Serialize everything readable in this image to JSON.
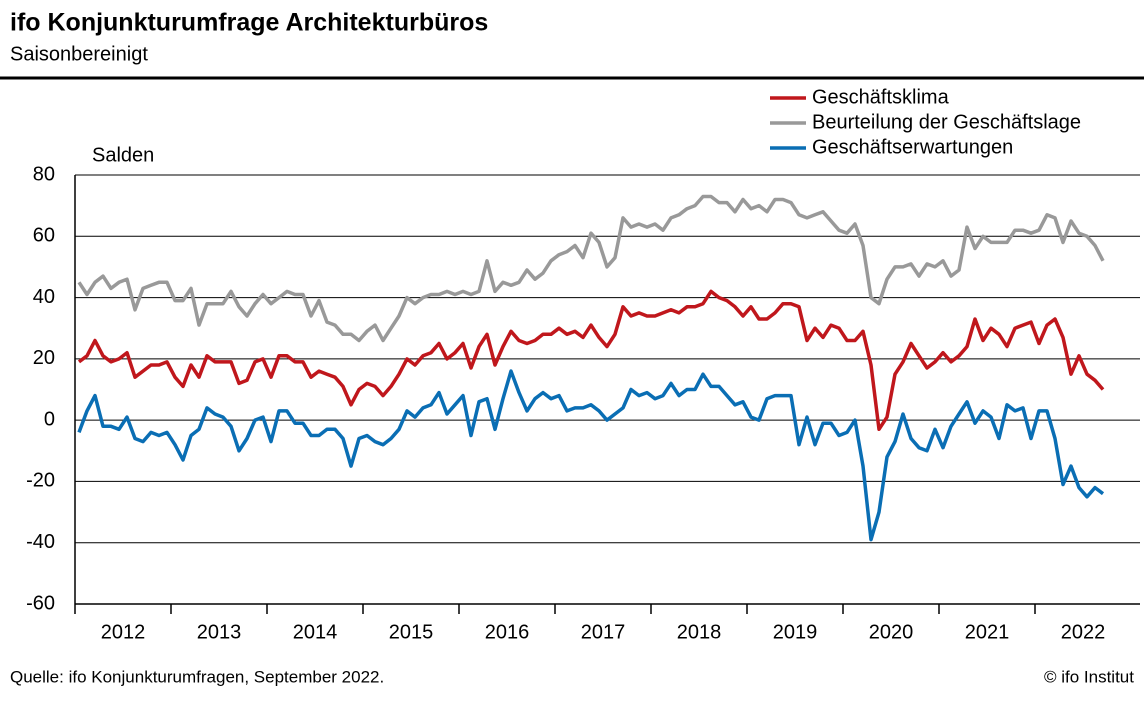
{
  "chart_data": {
    "type": "line",
    "title": "ifo Konjunkturumfrage Architekturbüros",
    "subtitle": "Saisonbereinigt",
    "y_label": "Salden",
    "source": "Quelle: ifo Konjunkturumfragen, September 2022.",
    "copyright": "© ifo Institut",
    "x": [
      "2012-01",
      "2012-02",
      "2012-03",
      "2012-04",
      "2012-05",
      "2012-06",
      "2012-07",
      "2012-08",
      "2012-09",
      "2012-10",
      "2012-11",
      "2012-12",
      "2013-01",
      "2013-02",
      "2013-03",
      "2013-04",
      "2013-05",
      "2013-06",
      "2013-07",
      "2013-08",
      "2013-09",
      "2013-10",
      "2013-11",
      "2013-12",
      "2014-01",
      "2014-02",
      "2014-03",
      "2014-04",
      "2014-05",
      "2014-06",
      "2014-07",
      "2014-08",
      "2014-09",
      "2014-10",
      "2014-11",
      "2014-12",
      "2015-01",
      "2015-02",
      "2015-03",
      "2015-04",
      "2015-05",
      "2015-06",
      "2015-07",
      "2015-08",
      "2015-09",
      "2015-10",
      "2015-11",
      "2015-12",
      "2016-01",
      "2016-02",
      "2016-03",
      "2016-04",
      "2016-05",
      "2016-06",
      "2016-07",
      "2016-08",
      "2016-09",
      "2016-10",
      "2016-11",
      "2016-12",
      "2017-01",
      "2017-02",
      "2017-03",
      "2017-04",
      "2017-05",
      "2017-06",
      "2017-07",
      "2017-08",
      "2017-09",
      "2017-10",
      "2017-11",
      "2017-12",
      "2018-01",
      "2018-02",
      "2018-03",
      "2018-04",
      "2018-05",
      "2018-06",
      "2018-07",
      "2018-08",
      "2018-09",
      "2018-10",
      "2018-11",
      "2018-12",
      "2019-01",
      "2019-02",
      "2019-03",
      "2019-04",
      "2019-05",
      "2019-06",
      "2019-07",
      "2019-08",
      "2019-09",
      "2019-10",
      "2019-11",
      "2019-12",
      "2020-01",
      "2020-02",
      "2020-03",
      "2020-04",
      "2020-05",
      "2020-06",
      "2020-07",
      "2020-08",
      "2020-09",
      "2020-10",
      "2020-11",
      "2020-12",
      "2021-01",
      "2021-02",
      "2021-03",
      "2021-04",
      "2021-05",
      "2021-06",
      "2021-07",
      "2021-08",
      "2021-09",
      "2021-10",
      "2021-11",
      "2021-12",
      "2022-01",
      "2022-02",
      "2022-03",
      "2022-04",
      "2022-05",
      "2022-06",
      "2022-07",
      "2022-08",
      "2022-09"
    ],
    "xticks": [
      "2012",
      "2013",
      "2014",
      "2015",
      "2016",
      "2017",
      "2018",
      "2019",
      "2020",
      "2021",
      "2022"
    ],
    "ylim": [
      -60,
      80
    ],
    "yticks": [
      -60,
      -40,
      -20,
      0,
      20,
      40,
      60,
      80
    ],
    "grid": true,
    "legend": "top-right",
    "series": [
      {
        "name": "Geschäftsklima",
        "color": "#c0171c",
        "values": [
          19,
          21,
          26,
          21,
          19,
          20,
          22,
          14,
          16,
          18,
          18,
          19,
          14,
          11,
          18,
          14,
          21,
          19,
          19,
          19,
          12,
          13,
          19,
          20,
          14,
          21,
          21,
          19,
          19,
          14,
          16,
          15,
          14,
          11,
          5,
          10,
          12,
          11,
          8,
          11,
          15,
          20,
          18,
          21,
          22,
          25,
          20,
          22,
          25,
          17,
          24,
          28,
          18,
          24,
          29,
          26,
          25,
          26,
          28,
          28,
          30,
          28,
          29,
          27,
          31,
          27,
          24,
          28,
          37,
          34,
          35,
          34,
          34,
          35,
          36,
          35,
          37,
          37,
          38,
          42,
          40,
          39,
          37,
          34,
          37,
          33,
          33,
          35,
          38,
          38,
          37,
          26,
          30,
          27,
          31,
          30,
          26,
          26,
          29,
          18,
          -3,
          1,
          15,
          19,
          25,
          21,
          17,
          19,
          22,
          19,
          21,
          24,
          33,
          26,
          30,
          28,
          24,
          30,
          31,
          32,
          25,
          31,
          33,
          27,
          15,
          21,
          15,
          13,
          10
        ]
      },
      {
        "name": "Beurteilung der Geschäftslage",
        "color": "#999999",
        "values": [
          45,
          41,
          45,
          47,
          43,
          45,
          46,
          36,
          43,
          44,
          45,
          45,
          39,
          39,
          43,
          31,
          38,
          38,
          38,
          42,
          37,
          34,
          38,
          41,
          38,
          40,
          42,
          41,
          41,
          34,
          39,
          32,
          31,
          28,
          28,
          26,
          29,
          31,
          26,
          30,
          34,
          40,
          38,
          40,
          41,
          41,
          42,
          41,
          42,
          41,
          42,
          52,
          42,
          45,
          44,
          45,
          49,
          46,
          48,
          52,
          54,
          55,
          57,
          53,
          61,
          58,
          50,
          53,
          66,
          63,
          64,
          63,
          64,
          62,
          66,
          67,
          69,
          70,
          73,
          73,
          71,
          71,
          68,
          72,
          69,
          70,
          68,
          72,
          72,
          71,
          67,
          66,
          67,
          68,
          65,
          62,
          61,
          64,
          57,
          40,
          38,
          46,
          50,
          50,
          51,
          47,
          51,
          50,
          52,
          47,
          49,
          63,
          56,
          60,
          58,
          58,
          58,
          62,
          62,
          61,
          62,
          67,
          66,
          58,
          65,
          61,
          60,
          57,
          52
        ]
      },
      {
        "name": "Geschäftserwartungen",
        "color": "#0a6eb4",
        "values": [
          -4,
          3,
          8,
          -2,
          -2,
          -3,
          1,
          -6,
          -7,
          -4,
          -5,
          -4,
          -8,
          -13,
          -5,
          -3,
          4,
          2,
          1,
          -2,
          -10,
          -6,
          0,
          1,
          -7,
          3,
          3,
          -1,
          -1,
          -5,
          -5,
          -3,
          -3,
          -6,
          -15,
          -6,
          -5,
          -7,
          -8,
          -6,
          -3,
          3,
          1,
          4,
          5,
          9,
          2,
          5,
          8,
          -5,
          6,
          7,
          -3,
          7,
          16,
          9,
          3,
          7,
          9,
          7,
          8,
          3,
          4,
          4,
          5,
          3,
          0,
          2,
          4,
          10,
          8,
          9,
          7,
          8,
          12,
          8,
          10,
          10,
          15,
          11,
          11,
          8,
          5,
          6,
          1,
          0,
          7,
          8,
          8,
          8,
          -8,
          1,
          -8,
          -1,
          -1,
          -5,
          -4,
          0,
          -15,
          -39,
          -30,
          -12,
          -7,
          2,
          -6,
          -9,
          -10,
          -3,
          -9,
          -2,
          2,
          6,
          -1,
          3,
          1,
          -6,
          5,
          3,
          4,
          -6,
          3,
          3,
          -6,
          -21,
          -15,
          -22,
          -25,
          -22,
          -24
        ]
      }
    ]
  }
}
